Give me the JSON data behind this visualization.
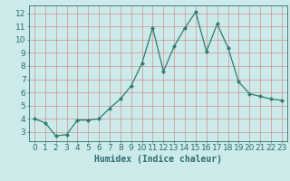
{
  "x": [
    0,
    1,
    2,
    3,
    4,
    5,
    6,
    7,
    8,
    9,
    10,
    11,
    12,
    13,
    14,
    15,
    16,
    17,
    18,
    19,
    20,
    21,
    22,
    23
  ],
  "y": [
    4.0,
    3.7,
    2.7,
    2.8,
    3.9,
    3.9,
    4.0,
    4.8,
    5.5,
    6.5,
    8.2,
    10.9,
    7.6,
    9.5,
    10.9,
    12.1,
    9.1,
    11.2,
    9.4,
    6.8,
    5.9,
    5.7,
    5.5,
    5.4
  ],
  "line_color": "#2d7d6e",
  "marker": "D",
  "marker_size": 2.0,
  "bg_color": "#cceaea",
  "grid_color": "#d09090",
  "xlabel": "Humidex (Indice chaleur)",
  "xlim": [
    -0.5,
    23.5
  ],
  "ylim": [
    2.3,
    12.6
  ],
  "yticks": [
    3,
    4,
    5,
    6,
    7,
    8,
    9,
    10,
    11,
    12
  ],
  "xticks": [
    0,
    1,
    2,
    3,
    4,
    5,
    6,
    7,
    8,
    9,
    10,
    11,
    12,
    13,
    14,
    15,
    16,
    17,
    18,
    19,
    20,
    21,
    22,
    23
  ],
  "font_color": "#2d6e6e",
  "xlabel_fontsize": 7,
  "tick_fontsize": 6.5,
  "line_width": 0.9
}
